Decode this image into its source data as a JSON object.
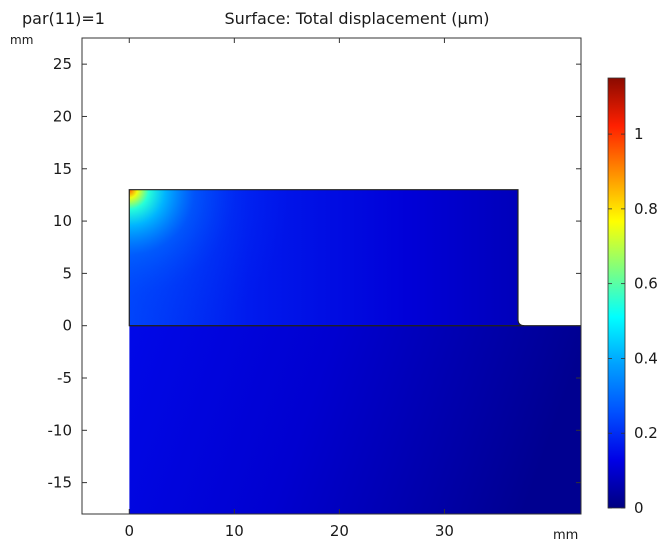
{
  "header": {
    "parameter_label": "par(11)=1",
    "title": "Surface: Total displacement (µm)"
  },
  "chart_data": {
    "type": "heatmap",
    "title": "Surface: Total displacement (µm)",
    "subtitle": "par(11)=1",
    "x_unit_label": "mm",
    "y_unit_label": "mm",
    "xlim": [
      -4.5,
      43
    ],
    "ylim": [
      -18,
      27.5
    ],
    "x_ticks": [
      0,
      10,
      20,
      30
    ],
    "y_ticks": [
      25,
      20,
      15,
      10,
      5,
      0,
      -5,
      -10,
      -15
    ],
    "colorbar": {
      "min": 0,
      "max": 1.15,
      "ticks": [
        1,
        0.8,
        0.6,
        0.4,
        0.2,
        0
      ],
      "colormap": "rainbow",
      "stops": [
        "#000080",
        "#0000e6",
        "#0050ff",
        "#00a0ff",
        "#00ffff",
        "#7fff7f",
        "#ffff00",
        "#ff9000",
        "#ff2000",
        "#8b0a00"
      ]
    },
    "geometry": {
      "upper_block": {
        "x": [
          0,
          37
        ],
        "y": [
          0,
          13
        ],
        "fillet_radius_mm": 0.6
      },
      "lower_block": {
        "x": [
          0,
          43
        ],
        "y": [
          -18,
          0
        ]
      }
    },
    "field_summary": {
      "max_value": 1.15,
      "max_location_mm": [
        0,
        13
      ],
      "min_location": "lower right of domain"
    }
  }
}
